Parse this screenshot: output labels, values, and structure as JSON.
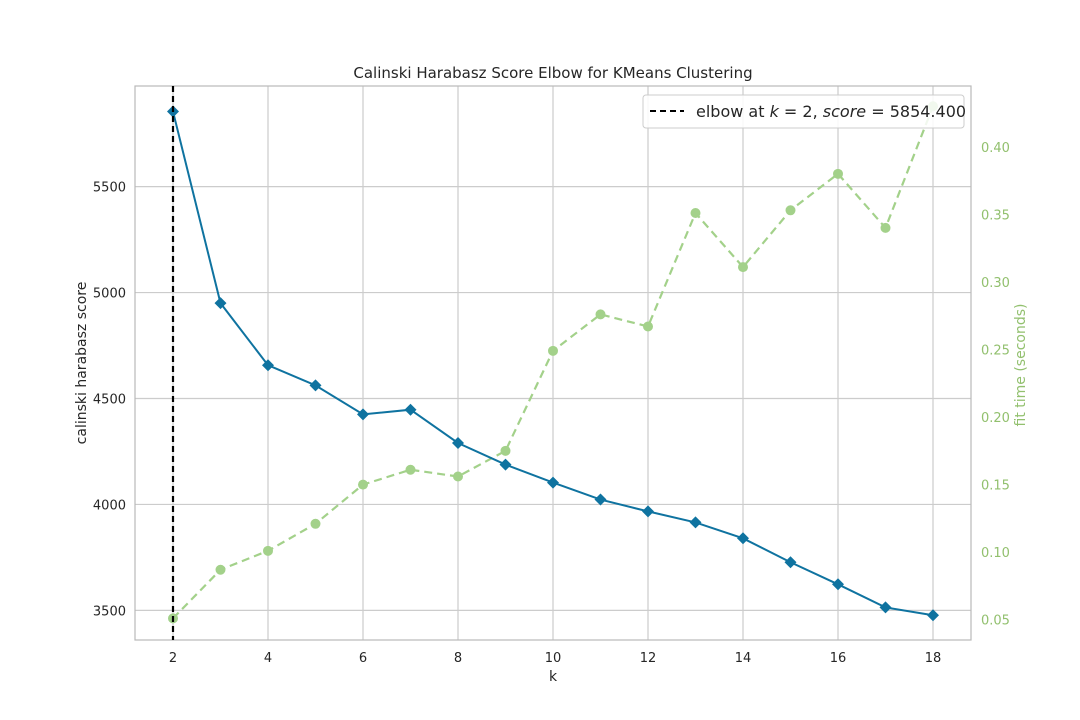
{
  "chart_data": {
    "type": "line",
    "title": "Calinski Harabasz Score Elbow for KMeans Clustering",
    "xlabel": "k",
    "ylabel": "calinski harabasz score",
    "y2label": "fit time (seconds)",
    "x": [
      2,
      3,
      4,
      5,
      6,
      7,
      8,
      9,
      10,
      11,
      12,
      13,
      14,
      15,
      16,
      17,
      18
    ],
    "xticks": [
      2,
      4,
      6,
      8,
      10,
      12,
      14,
      16,
      18
    ],
    "yticks": [
      3500,
      4000,
      4500,
      5000,
      5500
    ],
    "y2ticks": [
      0.05,
      0.1,
      0.15,
      0.2,
      0.25,
      0.3,
      0.35,
      0.4
    ],
    "y2tick_labels": [
      "0.05",
      "0.10",
      "0.15",
      "0.20",
      "0.25",
      "0.30",
      "0.35",
      "0.40"
    ],
    "xlim": [
      1.2,
      18.8
    ],
    "ylim": [
      3360,
      5975
    ],
    "y2lim": [
      0.035,
      0.445
    ],
    "grid": true,
    "legend_position": "top-right",
    "series": [
      {
        "values": [
          5854.4,
          4950,
          4657,
          4562,
          4425,
          4447,
          4290,
          4188,
          4103,
          4023,
          3967,
          3915,
          3840,
          3727,
          3623,
          3514,
          3477
        ],
        "color": "#0f73a0",
        "marker": "diamond",
        "axis": "left"
      },
      {
        "values": [
          0.051,
          0.087,
          0.101,
          0.121,
          0.15,
          0.161,
          0.156,
          0.175,
          0.249,
          0.276,
          0.267,
          0.351,
          0.311,
          0.353,
          0.38,
          0.34,
          0.43
        ],
        "color": "#a3d18a",
        "marker": "circle",
        "axis": "right",
        "style": "dashed"
      }
    ],
    "elbow": {
      "k": 2
    },
    "legend": {
      "prefix": "elbow at ",
      "k_var": "k",
      "eq": " = 2, ",
      "score_var": "score",
      "eq2": " = 5854.400"
    },
    "colors": {
      "axis_left_text": "#262626",
      "axis_right_text": "#92c06e",
      "grid": "#cccccc",
      "spine": "#b9b9b9",
      "elbow_line": "#000000"
    }
  }
}
